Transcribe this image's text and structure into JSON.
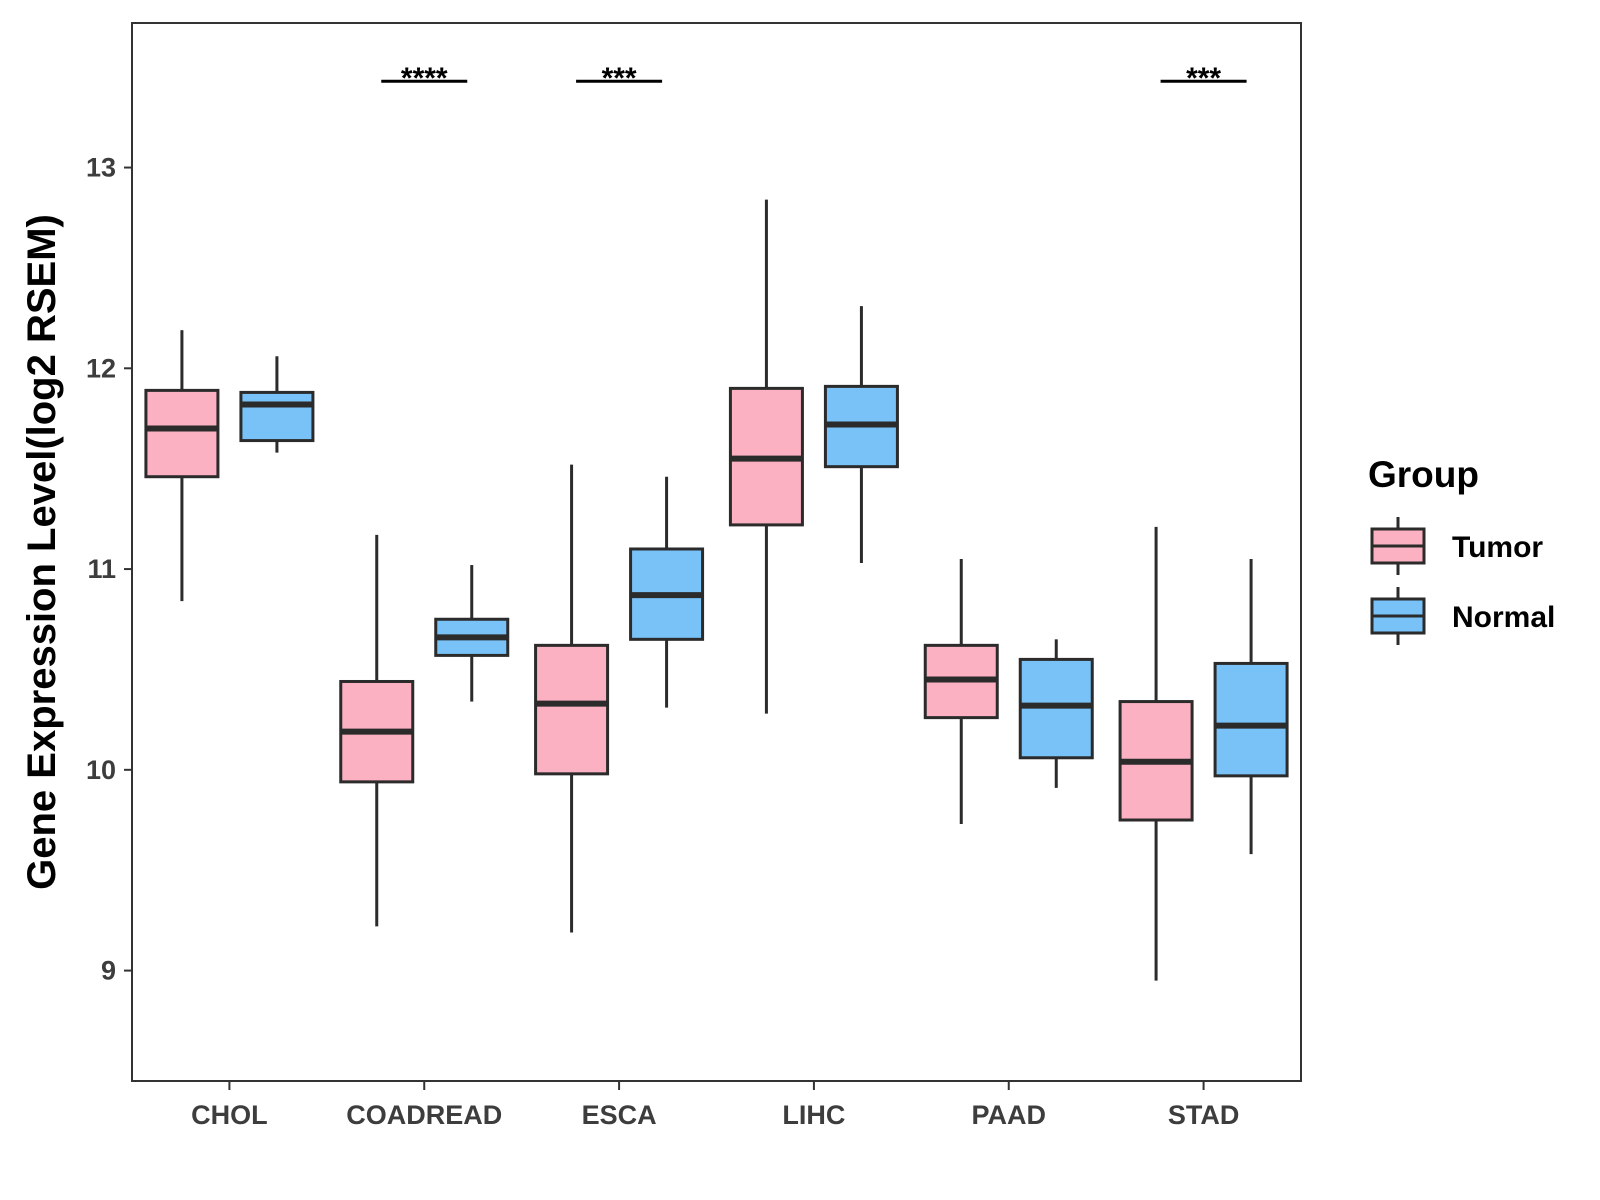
{
  "chart_data": {
    "type": "box",
    "title": "",
    "xlabel": "",
    "ylabel": "Gene Expression Level(log2 RSEM)",
    "ylim": [
      8.45,
      13.72
    ],
    "yticks": [
      9,
      10,
      11,
      12,
      13
    ],
    "categories": [
      "CHOL",
      "COADREAD",
      "ESCA",
      "LIHC",
      "PAAD",
      "STAD"
    ],
    "legend": {
      "title": "Group",
      "position": "right",
      "entries": [
        {
          "name": "Tumor",
          "color": "#FBB1C2"
        },
        {
          "name": "Normal",
          "color": "#78C2F7"
        }
      ]
    },
    "series": [
      {
        "name": "Tumor",
        "color": "#FBB1C2",
        "boxes": [
          {
            "category": "CHOL",
            "min": 10.84,
            "q1": 11.46,
            "median": 11.7,
            "q3": 11.89,
            "max": 12.19
          },
          {
            "category": "COADREAD",
            "min": 9.22,
            "q1": 9.94,
            "median": 10.19,
            "q3": 10.44,
            "max": 11.17
          },
          {
            "category": "ESCA",
            "min": 9.19,
            "q1": 9.98,
            "median": 10.33,
            "q3": 10.62,
            "max": 11.52
          },
          {
            "category": "LIHC",
            "min": 10.28,
            "q1": 11.22,
            "median": 11.55,
            "q3": 11.9,
            "max": 12.84
          },
          {
            "category": "PAAD",
            "min": 9.73,
            "q1": 10.26,
            "median": 10.45,
            "q3": 10.62,
            "max": 11.05
          },
          {
            "category": "STAD",
            "min": 8.95,
            "q1": 9.75,
            "median": 10.04,
            "q3": 10.34,
            "max": 11.21
          }
        ]
      },
      {
        "name": "Normal",
        "color": "#78C2F7",
        "boxes": [
          {
            "category": "CHOL",
            "min": 11.58,
            "q1": 11.64,
            "median": 11.82,
            "q3": 11.88,
            "max": 12.06
          },
          {
            "category": "COADREAD",
            "min": 10.34,
            "q1": 10.57,
            "median": 10.66,
            "q3": 10.75,
            "max": 11.02
          },
          {
            "category": "ESCA",
            "min": 10.31,
            "q1": 10.65,
            "median": 10.87,
            "q3": 11.1,
            "max": 11.46
          },
          {
            "category": "LIHC",
            "min": 11.03,
            "q1": 11.51,
            "median": 11.72,
            "q3": 11.91,
            "max": 12.31
          },
          {
            "category": "PAAD",
            "min": 9.91,
            "q1": 10.06,
            "median": 10.32,
            "q3": 10.55,
            "max": 10.65
          },
          {
            "category": "STAD",
            "min": 9.58,
            "q1": 9.97,
            "median": 10.22,
            "q3": 10.53,
            "max": 11.05
          }
        ]
      }
    ],
    "significance": [
      {
        "category": "COADREAD",
        "label": "****",
        "y": 13.43
      },
      {
        "category": "ESCA",
        "label": "***",
        "y": 13.43
      },
      {
        "category": "STAD",
        "label": "***",
        "y": 13.43
      }
    ]
  }
}
